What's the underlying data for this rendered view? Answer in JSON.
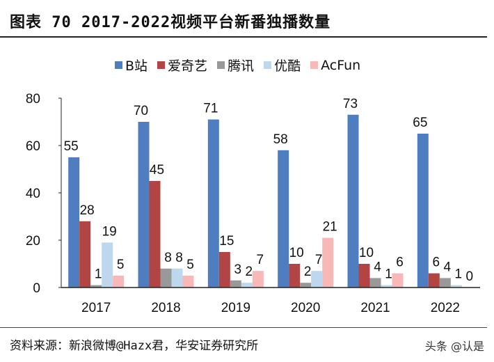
{
  "title": "图表 70 2017-2022视频平台新番独播数量",
  "source": "资料来源：新浪微博@Hazx君，华安证券研究所",
  "watermark": "头条 @认是",
  "chart_data": {
    "type": "bar",
    "title": "",
    "categories": [
      "2017",
      "2018",
      "2019",
      "2020",
      "2021",
      "2022"
    ],
    "series": [
      {
        "name": "B站",
        "color": "#4F7EC0",
        "values": [
          55,
          70,
          71,
          58,
          73,
          65
        ]
      },
      {
        "name": "爱奇艺",
        "color": "#B24444",
        "values": [
          28,
          45,
          15,
          10,
          10,
          6
        ]
      },
      {
        "name": "腾讯",
        "color": "#999999",
        "values": [
          1,
          8,
          3,
          2,
          4,
          4
        ]
      },
      {
        "name": "优酷",
        "color": "#BDD7EE",
        "values": [
          19,
          8,
          2,
          7,
          1,
          1
        ]
      },
      {
        "name": "AcFun",
        "color": "#F8B8B8",
        "values": [
          5,
          5,
          7,
          21,
          6,
          0
        ]
      }
    ],
    "ylim": [
      0,
      80
    ],
    "yticks": [
      0,
      20,
      40,
      60,
      80
    ],
    "grid": false,
    "legend": "top"
  }
}
